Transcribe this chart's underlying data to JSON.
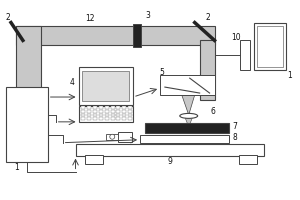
{
  "lc": "#444444",
  "bc": "#bbbbbb",
  "fig_w": 3.0,
  "fig_h": 2.0,
  "dpi": 100,
  "beam_duct_color": "#c8c8c8",
  "dark": "#222222",
  "white": "#ffffff",
  "gray_light": "#dddddd"
}
